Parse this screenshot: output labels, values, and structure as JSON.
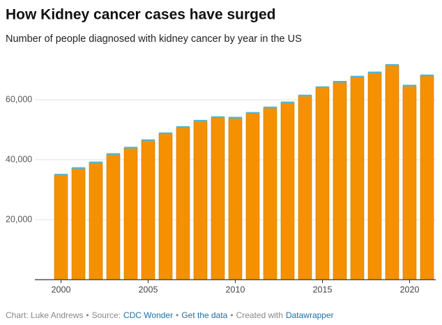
{
  "chart_data": {
    "type": "bar",
    "title": "How Kidney cancer cases have surged",
    "subtitle": "Number of people diagnosed with kidney cancer by year in the US",
    "x": [
      2000,
      2001,
      2002,
      2003,
      2004,
      2005,
      2006,
      2007,
      2008,
      2009,
      2010,
      2011,
      2012,
      2013,
      2014,
      2015,
      2016,
      2017,
      2018,
      2019,
      2020,
      2021
    ],
    "values": [
      35000,
      37200,
      39100,
      41900,
      44000,
      46500,
      48800,
      50900,
      53000,
      54200,
      54000,
      55600,
      57400,
      59100,
      61400,
      64200,
      66000,
      67700,
      69100,
      71600,
      64700,
      68100
    ],
    "color": "#f59100",
    "cap_color": "#5ab4c8",
    "xlim": [
      1998.5,
      2021.5
    ],
    "xticks": [
      2000,
      2005,
      2010,
      2015,
      2020
    ],
    "ylim": [
      0,
      75000
    ],
    "yticks": [
      {
        "value": 20000,
        "label": "20,000"
      },
      {
        "value": 40000,
        "label": "40,000"
      },
      {
        "value": 60000,
        "label": "60,000"
      }
    ],
    "grid": true,
    "footer": {
      "byline": "Chart: Luke Andrews",
      "separator": "•",
      "source_label": "Source:",
      "source": "CDC Wonder",
      "get_data": "Get the data",
      "created_label": "Created with",
      "tool": "Datawrapper"
    }
  }
}
